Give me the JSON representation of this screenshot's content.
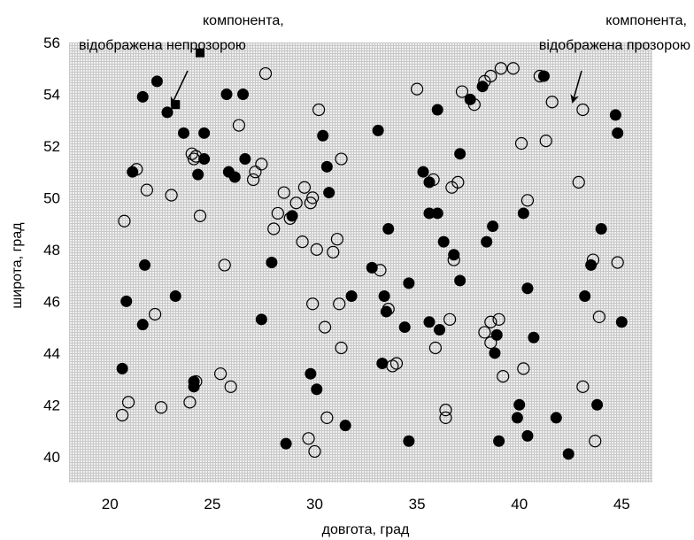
{
  "chart_data": {
    "type": "scatter",
    "xlabel": "довгота, град",
    "ylabel": "широта, град",
    "xlim": [
      18,
      46.5
    ],
    "ylim": [
      39,
      56
    ],
    "x_ticks": [
      20,
      25,
      30,
      35,
      40,
      45
    ],
    "y_ticks": [
      40,
      42,
      44,
      46,
      48,
      50,
      52,
      54,
      56
    ],
    "grid": "dense light gray",
    "colors": {
      "grid": "#c8c8c8",
      "background": "#efefef",
      "marker": "#000000"
    },
    "series": [
      {
        "marker": "filled-circle",
        "points": [
          [
            21.1,
            51.0
          ],
          [
            21.6,
            53.9
          ],
          [
            22.3,
            54.5
          ],
          [
            22.8,
            53.3
          ],
          [
            23.6,
            52.5
          ],
          [
            24.6,
            52.5
          ],
          [
            24.6,
            51.5
          ],
          [
            24.3,
            50.9
          ],
          [
            25.7,
            54.0
          ],
          [
            26.5,
            54.0
          ],
          [
            26.6,
            51.5
          ],
          [
            25.8,
            51.0
          ],
          [
            26.1,
            50.8
          ],
          [
            30.4,
            52.4
          ],
          [
            30.6,
            51.2
          ],
          [
            30.7,
            50.2
          ],
          [
            28.9,
            49.3
          ],
          [
            27.9,
            47.5
          ],
          [
            27.4,
            45.3
          ],
          [
            20.8,
            46.0
          ],
          [
            21.7,
            47.4
          ],
          [
            21.6,
            45.1
          ],
          [
            23.2,
            46.2
          ],
          [
            20.6,
            43.4
          ],
          [
            24.1,
            42.9
          ],
          [
            24.1,
            42.7
          ],
          [
            28.6,
            40.5
          ],
          [
            29.8,
            43.2
          ],
          [
            30.1,
            42.6
          ],
          [
            31.5,
            41.2
          ],
          [
            31.8,
            46.2
          ],
          [
            32.8,
            47.3
          ],
          [
            33.4,
            46.2
          ],
          [
            33.6,
            48.8
          ],
          [
            33.5,
            45.6
          ],
          [
            33.3,
            43.6
          ],
          [
            33.1,
            52.6
          ],
          [
            34.6,
            46.7
          ],
          [
            34.4,
            45.0
          ],
          [
            34.6,
            40.6
          ],
          [
            35.3,
            51.0
          ],
          [
            35.6,
            50.6
          ],
          [
            36.0,
            53.4
          ],
          [
            35.6,
            49.4
          ],
          [
            36.0,
            49.4
          ],
          [
            36.3,
            48.3
          ],
          [
            35.6,
            45.2
          ],
          [
            36.1,
            44.9
          ],
          [
            36.8,
            47.8
          ],
          [
            37.1,
            51.7
          ],
          [
            37.1,
            46.8
          ],
          [
            37.6,
            53.8
          ],
          [
            38.2,
            54.3
          ],
          [
            38.4,
            48.3
          ],
          [
            38.7,
            48.9
          ],
          [
            38.9,
            44.7
          ],
          [
            38.8,
            44.0
          ],
          [
            39.0,
            40.6
          ],
          [
            40.2,
            49.4
          ],
          [
            40.4,
            46.5
          ],
          [
            40.7,
            44.6
          ],
          [
            40.0,
            42.0
          ],
          [
            39.9,
            41.5
          ],
          [
            40.4,
            40.8
          ],
          [
            41.2,
            54.7
          ],
          [
            41.8,
            41.5
          ],
          [
            42.4,
            40.1
          ],
          [
            43.2,
            46.2
          ],
          [
            43.5,
            47.4
          ],
          [
            44.0,
            48.8
          ],
          [
            43.8,
            42.0
          ],
          [
            44.7,
            53.2
          ],
          [
            44.8,
            52.5
          ],
          [
            45.0,
            45.2
          ]
        ]
      },
      {
        "marker": "open-circle",
        "points": [
          [
            21.3,
            51.1
          ],
          [
            21.8,
            50.3
          ],
          [
            23.0,
            50.1
          ],
          [
            24.1,
            51.5
          ],
          [
            24.0,
            51.7
          ],
          [
            24.2,
            51.6
          ],
          [
            24.4,
            49.3
          ],
          [
            20.7,
            49.1
          ],
          [
            25.6,
            47.4
          ],
          [
            26.3,
            52.8
          ],
          [
            27.1,
            51.0
          ],
          [
            27.0,
            50.7
          ],
          [
            27.4,
            51.3
          ],
          [
            27.6,
            54.8
          ],
          [
            28.0,
            48.8
          ],
          [
            28.2,
            49.4
          ],
          [
            28.5,
            50.2
          ],
          [
            28.8,
            49.2
          ],
          [
            29.1,
            49.8
          ],
          [
            29.5,
            50.4
          ],
          [
            29.4,
            48.3
          ],
          [
            29.8,
            49.8
          ],
          [
            29.9,
            50.0
          ],
          [
            30.1,
            48.0
          ],
          [
            29.9,
            45.9
          ],
          [
            30.5,
            45.0
          ],
          [
            30.2,
            53.4
          ],
          [
            31.1,
            48.4
          ],
          [
            30.9,
            47.9
          ],
          [
            31.3,
            51.5
          ],
          [
            31.2,
            45.9
          ],
          [
            31.3,
            44.2
          ],
          [
            22.2,
            45.5
          ],
          [
            20.9,
            42.1
          ],
          [
            20.6,
            41.6
          ],
          [
            22.5,
            41.9
          ],
          [
            23.9,
            42.1
          ],
          [
            24.2,
            42.9
          ],
          [
            25.4,
            43.2
          ],
          [
            25.9,
            42.7
          ],
          [
            29.7,
            40.7
          ],
          [
            30.0,
            40.2
          ],
          [
            30.6,
            41.5
          ],
          [
            33.2,
            47.2
          ],
          [
            33.6,
            45.7
          ],
          [
            33.8,
            43.5
          ],
          [
            34.0,
            43.6
          ],
          [
            35.0,
            54.2
          ],
          [
            35.8,
            50.7
          ],
          [
            36.7,
            50.4
          ],
          [
            37.0,
            50.6
          ],
          [
            37.2,
            54.1
          ],
          [
            37.8,
            53.6
          ],
          [
            36.8,
            47.6
          ],
          [
            36.6,
            45.3
          ],
          [
            35.9,
            44.2
          ],
          [
            36.4,
            41.8
          ],
          [
            36.4,
            41.5
          ],
          [
            38.3,
            54.5
          ],
          [
            38.6,
            54.7
          ],
          [
            39.1,
            55.0
          ],
          [
            39.7,
            55.0
          ],
          [
            38.3,
            44.8
          ],
          [
            38.6,
            45.2
          ],
          [
            39.0,
            45.3
          ],
          [
            38.6,
            44.4
          ],
          [
            39.2,
            43.1
          ],
          [
            40.1,
            52.1
          ],
          [
            40.4,
            49.9
          ],
          [
            40.2,
            43.4
          ],
          [
            41.0,
            54.7
          ],
          [
            41.3,
            52.2
          ],
          [
            41.6,
            53.7
          ],
          [
            42.9,
            50.6
          ],
          [
            43.1,
            53.4
          ],
          [
            43.1,
            42.7
          ],
          [
            43.6,
            47.6
          ],
          [
            43.9,
            45.4
          ],
          [
            43.7,
            40.6
          ],
          [
            44.8,
            47.5
          ]
        ]
      },
      {
        "marker": "filled-square",
        "points": [
          [
            23.2,
            53.6
          ],
          [
            24.4,
            55.6
          ]
        ]
      }
    ],
    "annotations": [
      {
        "line1": "компонента,",
        "line2": "відображена непрозорою"
      },
      {
        "line1": "компонента,",
        "line2": "відображена прозорою"
      }
    ]
  }
}
